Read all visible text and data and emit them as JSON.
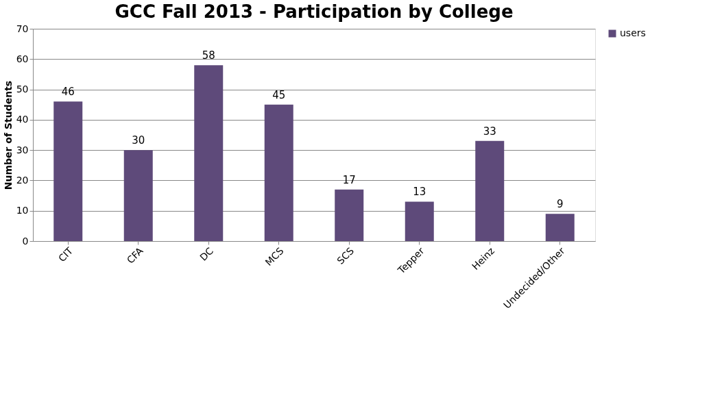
{
  "chart_data": {
    "type": "bar",
    "title": "GCC Fall 2013 - Participation by College",
    "ylabel": "Number of Students",
    "categories": [
      "CIT",
      "CFA",
      "DC",
      "MCS",
      "SCS",
      "Tepper",
      "Heinz",
      "Undecided/Other"
    ],
    "series": [
      {
        "name": "users",
        "color": "#5e4a7a",
        "values": [
          46,
          30,
          58,
          45,
          17,
          13,
          33,
          9
        ]
      }
    ],
    "ylim": [
      0,
      70
    ],
    "yticks": [
      0,
      10,
      20,
      30,
      40,
      50,
      60,
      70
    ],
    "grid": "y",
    "legend": "right",
    "data_labels": true
  }
}
